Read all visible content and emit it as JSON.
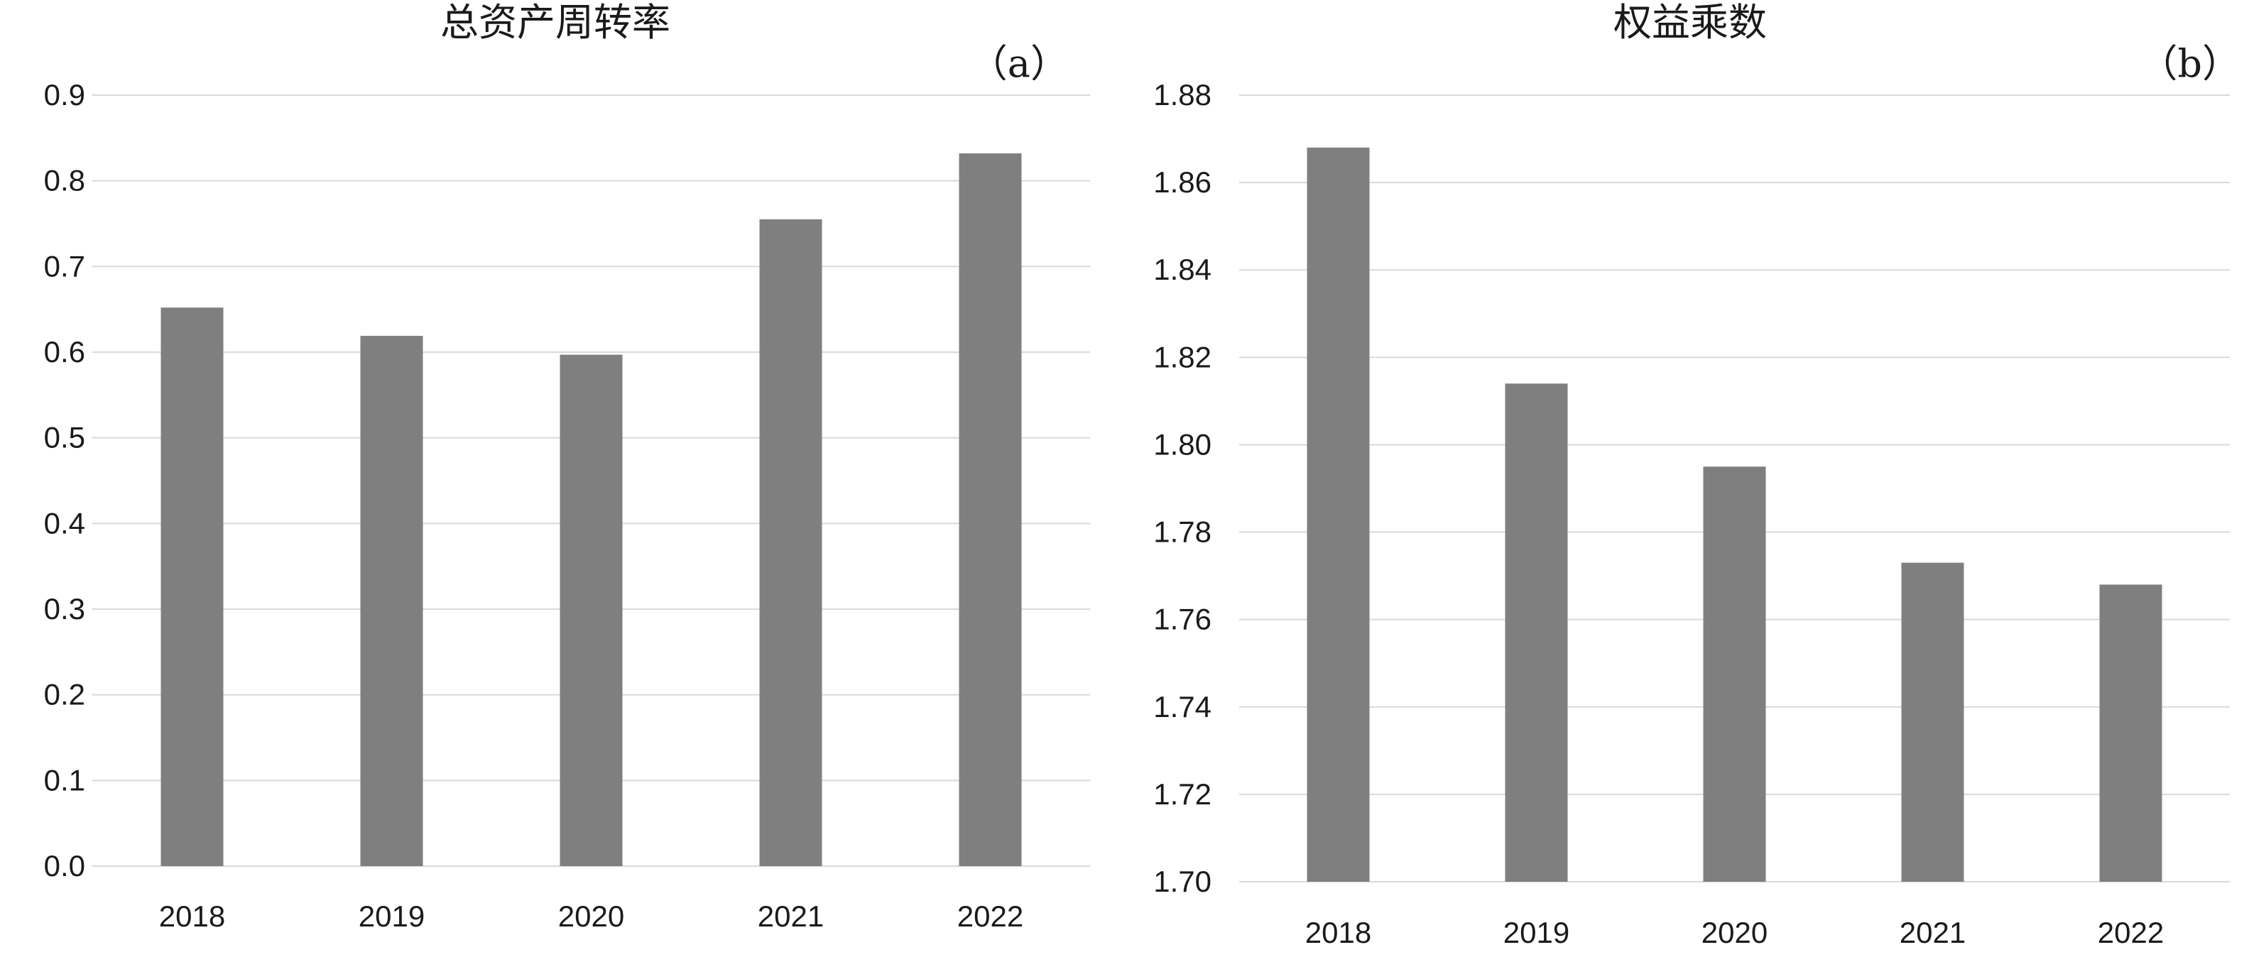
{
  "chart_data": [
    {
      "type": "bar",
      "title": "总资产周转率",
      "panel_label": "（a）",
      "categories": [
        "2018",
        "2019",
        "2020",
        "2021",
        "2022"
      ],
      "values": [
        0.652,
        0.619,
        0.597,
        0.755,
        0.832
      ],
      "ylim": [
        0,
        0.9
      ],
      "yticks": [
        "0.0",
        "0.1",
        "0.2",
        "0.3",
        "0.4",
        "0.5",
        "0.6",
        "0.7",
        "0.8",
        "0.9"
      ],
      "ytick_values": [
        0,
        0.1,
        0.2,
        0.3,
        0.4,
        0.5,
        0.6,
        0.7,
        0.8,
        0.9
      ],
      "xlabel": "",
      "ylabel": "",
      "bar_color": "#7f7f7f",
      "grid": true,
      "legend": "none"
    },
    {
      "type": "bar",
      "title": "权益乘数",
      "panel_label": "（b）",
      "categories": [
        "2018",
        "2019",
        "2020",
        "2021",
        "2022"
      ],
      "values": [
        1.868,
        1.814,
        1.795,
        1.773,
        1.768
      ],
      "ylim": [
        1.7,
        1.88
      ],
      "yticks": [
        "1.70",
        "1.72",
        "1.74",
        "1.76",
        "1.78",
        "1.80",
        "1.82",
        "1.84",
        "1.86",
        "1.88"
      ],
      "ytick_values": [
        1.7,
        1.72,
        1.74,
        1.76,
        1.78,
        1.8,
        1.82,
        1.84,
        1.86,
        1.88
      ],
      "xlabel": "",
      "ylabel": "",
      "bar_color": "#7f7f7f",
      "grid": true,
      "legend": "none"
    }
  ]
}
